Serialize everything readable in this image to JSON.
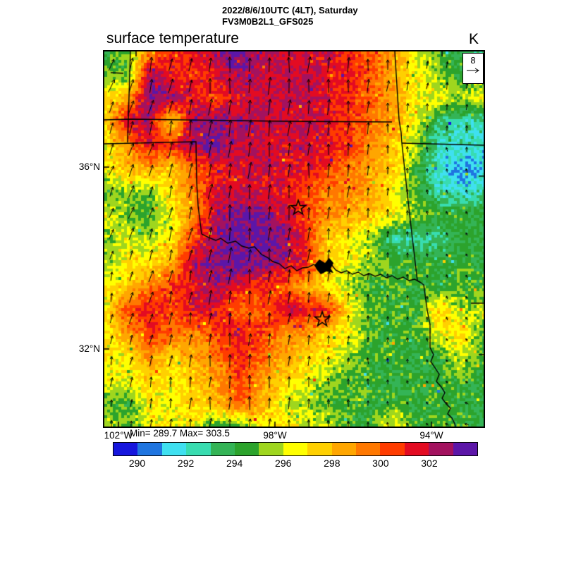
{
  "header": {
    "title_line1": "2022/8/6/10UTC (4LT), Saturday",
    "title_line2": "FV3M0B2L1_GFS025",
    "plot_title": "surface temperature",
    "unit": "K"
  },
  "stats": {
    "minmax": "Min= 289.7 Max= 303.5"
  },
  "ref_vector": {
    "value": "8"
  },
  "axes": {
    "lat": [
      {
        "label": "36°N",
        "y": 0.3083
      },
      {
        "label": "32°N",
        "y": 0.7932
      }
    ],
    "lon": [
      {
        "label": "102°W",
        "x": 0.0372
      },
      {
        "label": "98°W",
        "x": 0.4498
      },
      {
        "label": "94°W",
        "x": 0.8625
      }
    ],
    "ticks": {
      "left": [
        0.3083,
        0.7932
      ],
      "right": [
        0.3323,
        0.8083
      ],
      "bottom": [
        0.0372,
        0.4498,
        0.8625
      ],
      "top": [
        0.0836,
        0.487,
        0.8904
      ]
    }
  },
  "chart_data": {
    "type": "heatmap",
    "title": "surface temperature",
    "unit": "K",
    "min": 289.7,
    "max": 303.5,
    "level_start": 289,
    "level_step": 1,
    "palette": [
      "#1616dd",
      "#1f75e0",
      "#3fe0f0",
      "#38dcb0",
      "#34b456",
      "#2ca32c",
      "#9fd61e",
      "#ffff00",
      "#ffd000",
      "#ffa600",
      "#ff7800",
      "#ff3c00",
      "#e30b22",
      "#a3125f",
      "#5c16a8"
    ],
    "colorbar_ticks": [
      290,
      292,
      294,
      296,
      298,
      300,
      302
    ],
    "grid_cols": 18,
    "grid_rows": 17,
    "temperature_grid_K": [
      [
        294,
        295,
        299,
        301,
        301.5,
        302.5,
        303.5,
        302.5,
        301.5,
        302,
        301.5,
        301,
        300,
        298.5,
        296.5,
        294.5,
        294,
        293
      ],
      [
        295.5,
        294.5,
        302.5,
        301.5,
        300.5,
        301.5,
        302.5,
        302,
        302,
        302,
        301.5,
        301,
        300,
        298.5,
        296.5,
        295.5,
        294,
        295
      ],
      [
        297,
        298.5,
        303,
        302.5,
        301.5,
        300.5,
        301.5,
        302,
        302,
        302,
        301.5,
        301,
        300,
        298.5,
        296.5,
        296.5,
        295.5,
        296.5
      ],
      [
        297.5,
        301.5,
        302.5,
        297,
        302.5,
        303,
        302.5,
        302,
        302,
        302,
        301.5,
        300.5,
        299.5,
        298.5,
        296,
        293.5,
        292.5,
        292.5
      ],
      [
        296.5,
        299,
        301.5,
        301,
        302.5,
        303.5,
        302,
        302,
        301.5,
        302,
        301.5,
        300.5,
        299,
        297.5,
        295.5,
        292,
        292.5,
        292
      ],
      [
        296.5,
        298,
        298.5,
        297.5,
        300,
        301,
        301.5,
        302,
        301.5,
        301.5,
        300.5,
        299.5,
        298.5,
        297.5,
        294.5,
        292,
        290.5,
        291.5
      ],
      [
        294.5,
        295.5,
        295,
        297,
        299.5,
        301.5,
        302,
        301.5,
        301.5,
        300.5,
        299.5,
        299,
        298.5,
        296.5,
        294.5,
        292.5,
        292,
        292.5
      ],
      [
        296.5,
        295,
        294.5,
        296.5,
        299,
        302,
        303.5,
        303,
        302,
        300.5,
        299,
        298.5,
        297.5,
        296.5,
        295.5,
        294.5,
        294.5,
        294
      ],
      [
        295,
        296.5,
        295.5,
        297,
        300.5,
        302.5,
        303.5,
        303.5,
        303,
        301,
        297.5,
        296.5,
        295.5,
        292.5,
        292.5,
        293,
        294,
        294
      ],
      [
        295.5,
        296.5,
        297,
        298.5,
        302.5,
        303,
        303.5,
        303,
        302.5,
        301,
        297.5,
        296.5,
        295.5,
        294.5,
        294.5,
        294,
        294.5,
        294
      ],
      [
        296.5,
        297.5,
        299.5,
        300.5,
        301.5,
        302.5,
        301.5,
        301,
        300,
        298.5,
        297,
        295.5,
        294.5,
        294.5,
        294.5,
        294,
        295,
        294.5
      ],
      [
        296.5,
        300.5,
        301,
        300.5,
        301.5,
        301.5,
        300,
        300,
        302,
        301.5,
        301,
        296.5,
        294.5,
        294.5,
        294.5,
        297.5,
        295.5,
        296
      ],
      [
        296.5,
        298.5,
        301,
        300,
        299,
        300.5,
        301.5,
        300.5,
        299,
        299,
        297.5,
        296.5,
        294.5,
        294.5,
        294.5,
        296.5,
        297.5,
        294.5
      ],
      [
        296.5,
        296.5,
        299,
        297.5,
        298.5,
        299.5,
        301,
        300,
        298.5,
        297.5,
        296.5,
        295.5,
        294.5,
        294.5,
        294,
        294.5,
        296,
        294.5
      ],
      [
        296.5,
        296.5,
        297.5,
        296.5,
        297.5,
        298.5,
        300.5,
        299,
        297.5,
        296.5,
        295.5,
        294.5,
        294.5,
        294,
        294.5,
        294,
        295,
        294
      ],
      [
        295,
        294.5,
        296.5,
        296.5,
        297.5,
        298,
        300,
        298.5,
        296.5,
        295.5,
        294.5,
        294.5,
        294,
        294.5,
        294,
        294.5,
        294,
        294
      ],
      [
        296,
        295,
        296.5,
        296.5,
        296.5,
        294.5,
        294.5,
        296.5,
        297,
        296.5,
        296,
        294.5,
        294.5,
        297,
        294.5,
        294.5,
        294.5,
        294
      ]
    ],
    "wind": {
      "ref_ms": 8,
      "grid_uv": [
        [
          [
            2,
            6
          ],
          [
            1.5,
            7
          ],
          [
            1,
            7.5
          ],
          [
            0.5,
            8
          ],
          [
            0.5,
            8
          ],
          [
            0.5,
            7.5
          ],
          [
            0.5,
            7
          ],
          [
            0.5,
            5
          ],
          [
            1,
            4
          ],
          [
            1,
            3.5
          ]
        ],
        [
          [
            2.5,
            6
          ],
          [
            2,
            7
          ],
          [
            1,
            7.5
          ],
          [
            0.5,
            8
          ],
          [
            0.5,
            8
          ],
          [
            0.5,
            7.5
          ],
          [
            0.5,
            6.5
          ],
          [
            0.5,
            4.5
          ],
          [
            0.5,
            3
          ],
          [
            0.5,
            3
          ]
        ],
        [
          [
            2.5,
            5.5
          ],
          [
            2,
            6.5
          ],
          [
            1.5,
            7.5
          ],
          [
            0.5,
            8
          ],
          [
            0.5,
            8
          ],
          [
            0.5,
            7
          ],
          [
            0.5,
            5.5
          ],
          [
            0,
            3.5
          ],
          [
            -0.5,
            2
          ],
          [
            0,
            2.5
          ]
        ],
        [
          [
            2,
            5
          ],
          [
            2,
            6
          ],
          [
            1.5,
            7
          ],
          [
            1,
            7.5
          ],
          [
            0.5,
            7.5
          ],
          [
            0.5,
            6.5
          ],
          [
            0.5,
            5
          ],
          [
            0,
            3
          ],
          [
            -0.5,
            1.5
          ],
          [
            -0.5,
            2
          ]
        ],
        [
          [
            1.5,
            5
          ],
          [
            2,
            5.5
          ],
          [
            1.5,
            6.5
          ],
          [
            1,
            7
          ],
          [
            0.5,
            7
          ],
          [
            0.5,
            6
          ],
          [
            0.5,
            4.5
          ],
          [
            0,
            2.5
          ],
          [
            -0.5,
            1.5
          ],
          [
            -1,
            1.5
          ]
        ],
        [
          [
            1,
            4.5
          ],
          [
            1.5,
            5.5
          ],
          [
            1.5,
            6.5
          ],
          [
            1,
            7
          ],
          [
            0.5,
            6.5
          ],
          [
            0.5,
            5.5
          ],
          [
            0,
            4
          ],
          [
            0,
            2
          ],
          [
            -0.5,
            1.5
          ],
          [
            -1,
            1
          ]
        ],
        [
          [
            1,
            4.5
          ],
          [
            1.5,
            5.5
          ],
          [
            1,
            6.5
          ],
          [
            0.5,
            7
          ],
          [
            0.5,
            6.5
          ],
          [
            0.5,
            5
          ],
          [
            0,
            3.5
          ],
          [
            0,
            2
          ],
          [
            -0.5,
            1.5
          ],
          [
            -1.5,
            1
          ]
        ],
        [
          [
            0.5,
            4
          ],
          [
            1,
            5
          ],
          [
            0.5,
            6
          ],
          [
            0.5,
            6.5
          ],
          [
            0.5,
            6
          ],
          [
            0,
            5
          ],
          [
            0,
            3.5
          ],
          [
            -0.5,
            2
          ],
          [
            -1,
            1
          ],
          [
            -1.5,
            0.5
          ]
        ],
        [
          [
            0.5,
            3.5
          ],
          [
            0.5,
            4.5
          ],
          [
            0.5,
            5.5
          ],
          [
            0.5,
            6
          ],
          [
            0.5,
            5.5
          ],
          [
            0,
            4.5
          ],
          [
            0,
            3
          ],
          [
            -0.5,
            1.5
          ],
          [
            -1.5,
            1
          ],
          [
            -2,
            0.5
          ]
        ]
      ]
    },
    "overlays": {
      "borders": [
        [
          [
            0.0688,
            0.0
          ],
          [
            0.0613,
            0.2425
          ]
        ],
        [
          [
            0.0,
            0.1823
          ],
          [
            0.0688,
            0.1805
          ],
          [
            0.4684,
            0.1861
          ],
          [
            0.7584,
            0.188
          ]
        ],
        [
          [
            0.0,
            0.2462
          ],
          [
            0.2416,
            0.2406
          ],
          [
            0.2435,
            0.3496
          ],
          [
            0.2472,
            0.4117
          ],
          [
            0.2565,
            0.4868
          ]
        ],
        [
          [
            0.7658,
            0.0
          ],
          [
            0.777,
            0.1823
          ],
          [
            0.7825,
            0.2162
          ],
          [
            0.7844,
            0.2444
          ],
          [
            0.7974,
            0.3666
          ],
          [
            0.8104,
            0.4831
          ],
          [
            0.8253,
            0.6109
          ],
          [
            0.8346,
            0.6165
          ],
          [
            0.842,
            0.6222
          ],
          [
            0.8513,
            0.6899
          ],
          [
            0.8587,
            0.7274
          ],
          [
            0.8587,
            0.7895
          ]
        ],
        [
          [
            0.7844,
            0.2444
          ],
          [
            1.0,
            0.25
          ]
        ],
        [
          [
            0.9665,
            0.6711
          ],
          [
            1.0,
            0.6711
          ]
        ],
        [
          [
            0.0167,
            0.0564
          ],
          [
            0.0502,
            0.0583
          ]
        ]
      ],
      "rivers": [
        [
          [
            0.2565,
            0.4868
          ],
          [
            0.2751,
            0.4962
          ],
          [
            0.2937,
            0.5038
          ],
          [
            0.3067,
            0.4981
          ],
          [
            0.3253,
            0.5113
          ],
          [
            0.3457,
            0.5056
          ],
          [
            0.3625,
            0.5188
          ],
          [
            0.381,
            0.5244
          ],
          [
            0.3959,
            0.5207
          ],
          [
            0.4145,
            0.5414
          ],
          [
            0.4294,
            0.5489
          ],
          [
            0.4442,
            0.5602
          ],
          [
            0.461,
            0.5658
          ],
          [
            0.4758,
            0.579
          ],
          [
            0.4926,
            0.5714
          ],
          [
            0.5074,
            0.5846
          ],
          [
            0.5223,
            0.5771
          ],
          [
            0.5372,
            0.5752
          ],
          [
            0.552,
            0.5677
          ],
          [
            0.565,
            0.579
          ],
          [
            0.5762,
            0.5696
          ],
          [
            0.5874,
            0.579
          ],
          [
            0.5985,
            0.5677
          ],
          [
            0.6097,
            0.5827
          ],
          [
            0.6245,
            0.5902
          ],
          [
            0.6394,
            0.5846
          ],
          [
            0.6543,
            0.594
          ],
          [
            0.6691,
            0.5884
          ],
          [
            0.684,
            0.5977
          ],
          [
            0.6989,
            0.5921
          ],
          [
            0.7138,
            0.5996
          ],
          [
            0.7286,
            0.594
          ],
          [
            0.7435,
            0.6034
          ],
          [
            0.7584,
            0.5977
          ],
          [
            0.7732,
            0.6071
          ],
          [
            0.7881,
            0.6015
          ],
          [
            0.803,
            0.6109
          ],
          [
            0.8178,
            0.6071
          ],
          [
            0.8346,
            0.6165
          ]
        ],
        [
          [
            0.8587,
            0.7895
          ],
          [
            0.868,
            0.8083
          ],
          [
            0.8606,
            0.8271
          ],
          [
            0.8736,
            0.8459
          ],
          [
            0.8829,
            0.8609
          ],
          [
            0.8755,
            0.8797
          ],
          [
            0.8885,
            0.8947
          ],
          [
            0.8978,
            0.9098
          ],
          [
            0.8904,
            0.9248
          ],
          [
            0.9015,
            0.9398
          ],
          [
            0.9127,
            0.9511
          ],
          [
            0.9052,
            0.9662
          ],
          [
            0.9164,
            0.9774
          ],
          [
            0.9238,
            0.9925
          ],
          [
            0.9257,
            1.0
          ]
        ]
      ],
      "lake": [
        [
          0.5539,
          0.5696
        ],
        [
          0.5669,
          0.5545
        ],
        [
          0.5818,
          0.5639
        ],
        [
          0.5929,
          0.5508
        ],
        [
          0.6041,
          0.5639
        ],
        [
          0.5967,
          0.579
        ],
        [
          0.6041,
          0.5902
        ],
        [
          0.5855,
          0.5865
        ],
        [
          0.5706,
          0.594
        ],
        [
          0.5595,
          0.5808
        ]
      ],
      "stars": [
        {
          "x": 0.5112,
          "y": 0.4173
        },
        {
          "x": 0.5744,
          "y": 0.7143
        }
      ]
    }
  }
}
